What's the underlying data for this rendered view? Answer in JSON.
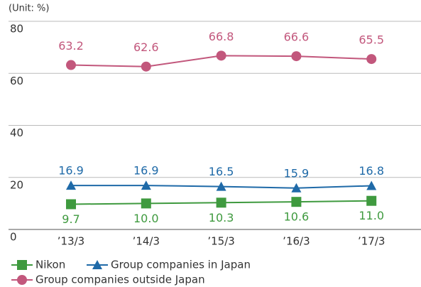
{
  "chart_data": {
    "type": "line",
    "y_label": "(Unit: %)",
    "categories": [
      "’13/3",
      "’14/3",
      "’15/3",
      "’16/3",
      "’17/3"
    ],
    "series": [
      {
        "name": "Nikon",
        "color": "#3f9a3f",
        "marker": "square",
        "values": [
          9.7,
          10.0,
          10.3,
          10.6,
          11.0
        ],
        "value_labels": [
          "9.7",
          "10.0",
          "10.3",
          "10.6",
          "11.0"
        ]
      },
      {
        "name": "Group companies in Japan",
        "color": "#1f6aa8",
        "marker": "triangle",
        "values": [
          16.9,
          16.9,
          16.5,
          15.9,
          16.8
        ],
        "value_labels": [
          "16.9",
          "16.9",
          "16.5",
          "15.9",
          "16.8"
        ]
      },
      {
        "name": "Group companies outside Japan",
        "color": "#c2577c",
        "marker": "circle",
        "values": [
          63.2,
          62.6,
          66.8,
          66.6,
          65.5
        ],
        "value_labels": [
          "63.2",
          "62.6",
          "66.8",
          "66.6",
          "65.5"
        ]
      }
    ],
    "ylim": [
      0,
      80
    ],
    "yticks": [
      0,
      20,
      40,
      60,
      80
    ],
    "grid": true
  }
}
